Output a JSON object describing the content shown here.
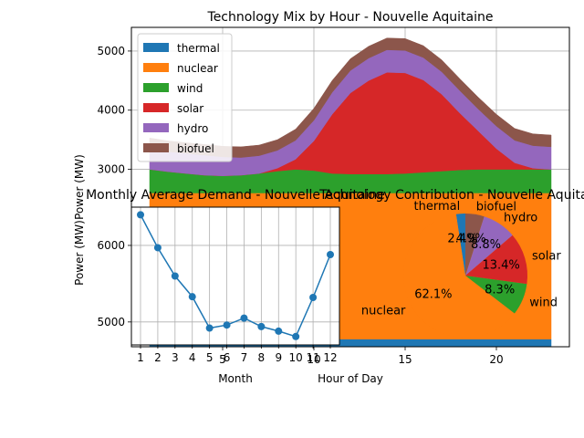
{
  "chart_data": [
    {
      "type": "area",
      "title": "Technology Mix by Hour - Nouvelle Aquitaine",
      "xlabel": "Hour of Day",
      "ylabel": "Power (MW)",
      "x": [
        1,
        2,
        3,
        4,
        5,
        6,
        7,
        8,
        9,
        10,
        11,
        12,
        13,
        14,
        15,
        16,
        17,
        18,
        19,
        20,
        21,
        22,
        23
      ],
      "xticks": [
        5,
        10,
        15,
        20
      ],
      "yticks": [
        3000,
        4000,
        5000
      ],
      "xlim": [
        0,
        24
      ],
      "ylim": [
        0,
        5400
      ],
      "legend": "upper-left",
      "grid": true,
      "series": [
        {
          "name": "thermal",
          "color": "#1f77b4",
          "values": [
            130,
            130,
            130,
            130,
            130,
            130,
            130,
            130,
            130,
            130,
            130,
            130,
            130,
            130,
            130,
            130,
            130,
            130,
            130,
            130,
            130,
            130,
            130
          ]
        },
        {
          "name": "nuclear",
          "color": "#ff7f0e",
          "values": [
            2470,
            2470,
            2470,
            2470,
            2470,
            2470,
            2470,
            2470,
            2470,
            2470,
            2470,
            2470,
            2470,
            2470,
            2470,
            2470,
            2470,
            2470,
            2470,
            2470,
            2470,
            2470,
            2470
          ]
        },
        {
          "name": "wind",
          "color": "#2ca02c",
          "values": [
            400,
            360,
            330,
            300,
            290,
            300,
            330,
            370,
            400,
            380,
            330,
            320,
            320,
            320,
            330,
            350,
            370,
            390,
            400,
            400,
            400,
            400,
            400
          ]
        },
        {
          "name": "solar",
          "color": "#d62728",
          "values": [
            0,
            0,
            0,
            0,
            0,
            0,
            0,
            50,
            170,
            500,
            1000,
            1370,
            1580,
            1720,
            1700,
            1560,
            1300,
            960,
            650,
            350,
            110,
            20,
            0
          ]
        },
        {
          "name": "hydro",
          "color": "#9467bd",
          "values": [
            350,
            340,
            340,
            340,
            320,
            300,
            300,
            300,
            320,
            350,
            370,
            380,
            380,
            380,
            380,
            380,
            380,
            380,
            370,
            380,
            380,
            380,
            380
          ]
        },
        {
          "name": "biofuel",
          "color": "#8c564b",
          "values": [
            180,
            180,
            180,
            180,
            180,
            180,
            180,
            180,
            190,
            200,
            200,
            200,
            200,
            200,
            200,
            200,
            200,
            200,
            200,
            200,
            200,
            200,
            200
          ]
        }
      ]
    },
    {
      "type": "line",
      "title": "Monthly Average Demand - Nouvelle Aquitaine",
      "xlabel": "Month",
      "ylabel": "Power (MW)",
      "x": [
        1,
        2,
        3,
        4,
        5,
        6,
        7,
        8,
        9,
        10,
        11,
        12
      ],
      "values": [
        6400,
        5970,
        5600,
        5330,
        4920,
        4960,
        5050,
        4940,
        4880,
        4810,
        5320,
        5880
      ],
      "yticks": [
        4000,
        5000,
        6000
      ],
      "ylim": [
        4700,
        6500
      ],
      "color": "#1f77b4",
      "grid": true
    },
    {
      "type": "pie",
      "title": "Technology Contribution - Nouvelle Aquitaine",
      "labels": [
        "thermal",
        "nuclear",
        "wind",
        "solar",
        "hydro",
        "biofuel"
      ],
      "values": [
        2.4,
        62.1,
        8.3,
        13.4,
        8.8,
        4.9
      ],
      "pct_labels": [
        "2.4%",
        "62.1%",
        "8.3%",
        "13.4%",
        "8.8%",
        "4.9%"
      ],
      "colors": [
        "#1f77b4",
        "#ff7f0e",
        "#2ca02c",
        "#d62728",
        "#9467bd",
        "#8c564b"
      ]
    }
  ]
}
